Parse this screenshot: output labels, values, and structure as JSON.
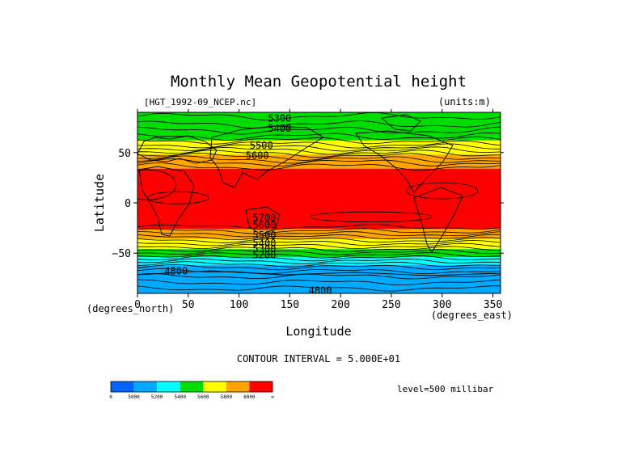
{
  "chart_data": {
    "type": "heatmap",
    "title": "Monthly Mean Geopotential height",
    "file_label": "[HGT_1992-09_NCEP.nc]",
    "units_label": "(units:m)",
    "xlabel": "Longitude",
    "ylabel": "Latitude",
    "x_unit_label": "(degrees_east)",
    "y_unit_label": "(degrees_north)",
    "xlim": [
      0,
      357.5
    ],
    "ylim": [
      -90,
      90
    ],
    "x_ticks": [
      0,
      50,
      100,
      150,
      200,
      250,
      300,
      350
    ],
    "x_tick_labels": [
      "0",
      "50",
      "100",
      "150",
      "200",
      "250",
      "300",
      "350"
    ],
    "y_ticks": [
      -50,
      0,
      50
    ],
    "y_tick_labels": [
      "−50",
      "0",
      "50"
    ],
    "contour_interval_text": "CONTOUR INTERVAL = 5.000E+01",
    "level_text": "level=500 millibar",
    "contour_labels": [
      {
        "text": "5300",
        "x": 140,
        "y": 84
      },
      {
        "text": "5400",
        "x": 140,
        "y": 74
      },
      {
        "text": "5500",
        "x": 122,
        "y": 57
      },
      {
        "text": "5600",
        "x": 118,
        "y": 47
      },
      {
        "text": "5700",
        "x": 125,
        "y": -15
      },
      {
        "text": "5600",
        "x": 125,
        "y": -22
      },
      {
        "text": "5500",
        "x": 125,
        "y": -32
      },
      {
        "text": "5400",
        "x": 125,
        "y": -40
      },
      {
        "text": "5300",
        "x": 125,
        "y": -46
      },
      {
        "text": "5200",
        "x": 125,
        "y": -52
      },
      {
        "text": "4800",
        "x": 38,
        "y": -68
      },
      {
        "text": "4800",
        "x": 180,
        "y": -87
      }
    ],
    "lat_bands": [
      {
        "lat_top": 90,
        "lat_bottom": 62,
        "class": 3
      },
      {
        "lat_top": 62,
        "lat_bottom": 48,
        "class": 4
      },
      {
        "lat_top": 48,
        "lat_bottom": 34,
        "class": 5
      },
      {
        "lat_top": 34,
        "lat_bottom": -26,
        "class": 6
      },
      {
        "lat_top": -26,
        "lat_bottom": -36,
        "class": 5
      },
      {
        "lat_top": -36,
        "lat_bottom": -46,
        "class": 4
      },
      {
        "lat_top": -46,
        "lat_bottom": -54,
        "class": 3
      },
      {
        "lat_top": -54,
        "lat_bottom": -62,
        "class": 2
      },
      {
        "lat_top": -62,
        "lat_bottom": -90,
        "class": 1
      }
    ],
    "colorbar": {
      "colors": [
        "#0064ff",
        "#00aaff",
        "#00ffff",
        "#00dd00",
        "#ffff00",
        "#ffa500",
        "#ff0000"
      ],
      "boundary_labels": [
        "0",
        "5000",
        "5200",
        "5400",
        "5600",
        "5800",
        "6000",
        "∞"
      ]
    }
  }
}
